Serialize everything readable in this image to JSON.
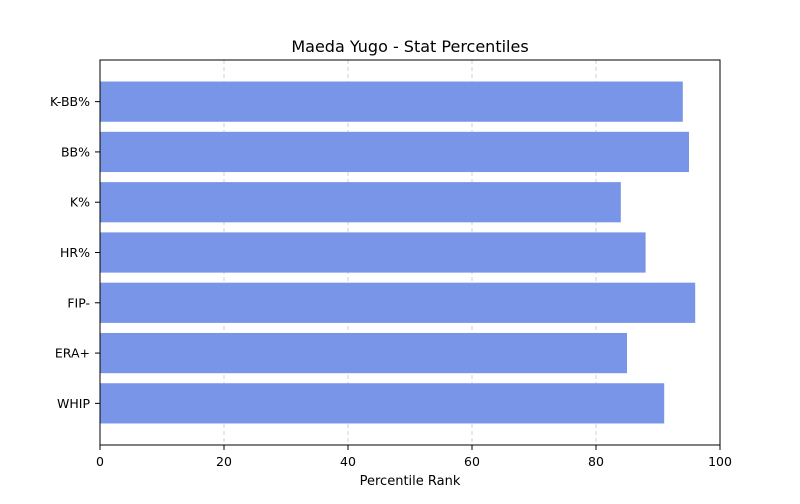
{
  "chart_data": {
    "type": "bar",
    "orientation": "horizontal",
    "title": "Maeda Yugo - Stat Percentiles",
    "xlabel": "Percentile Rank",
    "ylabel": "",
    "xlim": [
      0,
      100
    ],
    "xticks": [
      "0",
      "20",
      "40",
      "60",
      "80",
      "100"
    ],
    "categories": [
      "K-BB%",
      "BB%",
      "K%",
      "HR%",
      "FIP-",
      "ERA+",
      "WHIP"
    ],
    "values": [
      94,
      95,
      84,
      88,
      96,
      85,
      91
    ],
    "grid": {
      "x": true,
      "y": false,
      "style": "dashed"
    },
    "colors": {
      "bar": "#7895e8",
      "grid": "#b0b0b0",
      "axis": "#000000"
    }
  }
}
